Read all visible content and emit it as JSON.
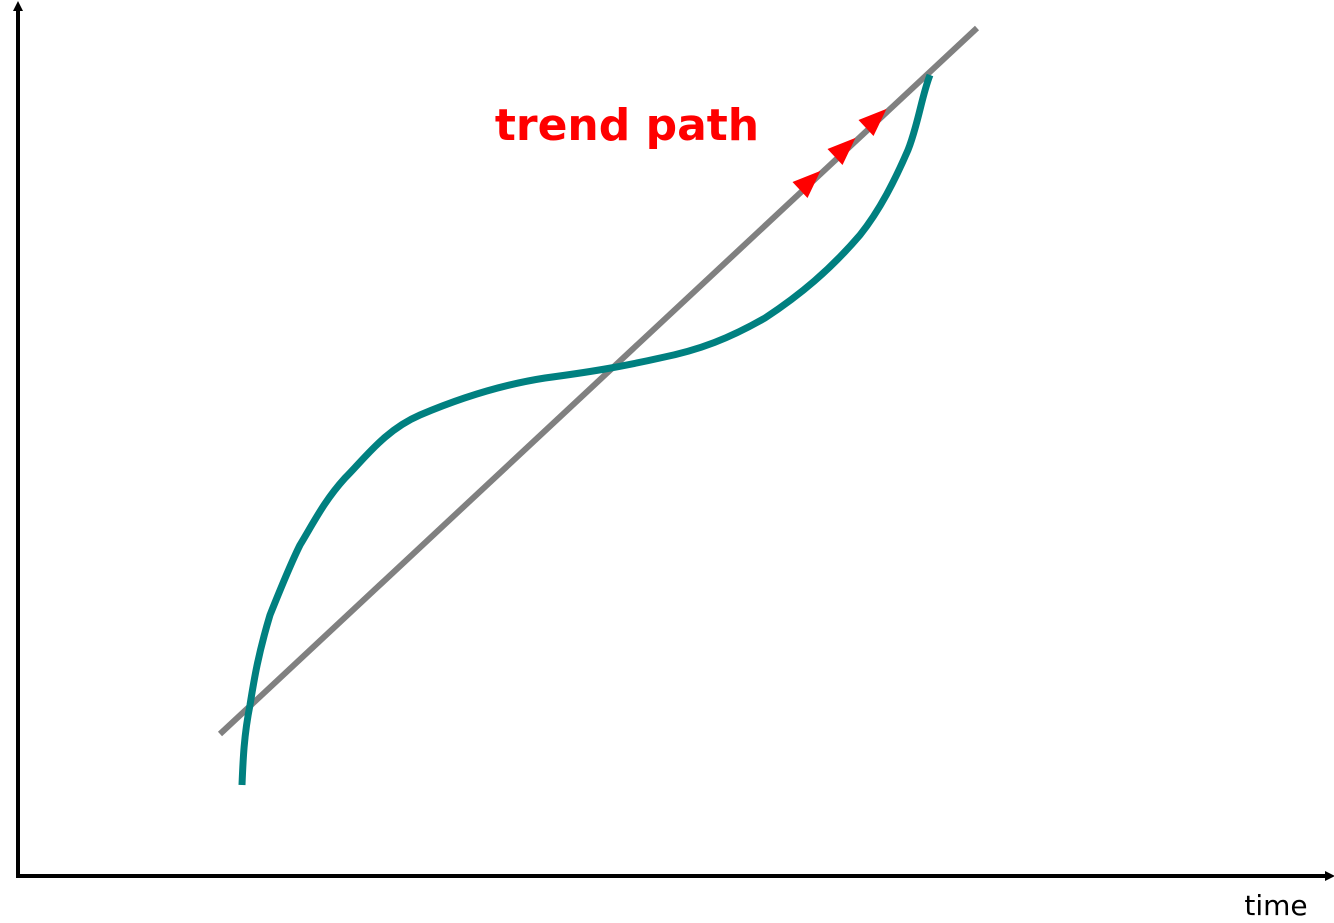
{
  "annotation": "trend path",
  "x_axis_label": "time"
}
